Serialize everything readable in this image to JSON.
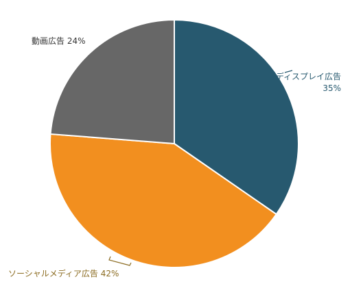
{
  "chart_data": {
    "type": "pie",
    "slices": [
      {
        "label": "ディスプレイ広告",
        "value": 35,
        "display_value": "35%",
        "color": "#27596f",
        "label_color": "#27596f"
      },
      {
        "label": "ソーシャルメディア広告",
        "value": 42,
        "display_value": "42%",
        "color": "#f28f1f",
        "label_color": "#8a6a1f"
      },
      {
        "label": "動画広告",
        "value": 24,
        "display_value": "24%",
        "color": "#676767",
        "label_color": "#333333"
      }
    ]
  }
}
